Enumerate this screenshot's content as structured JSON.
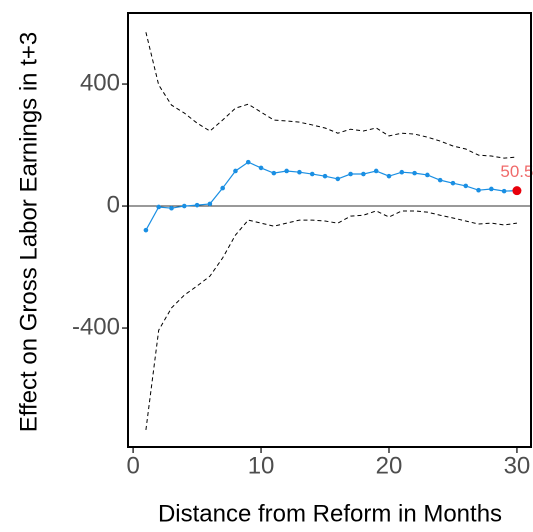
{
  "chart_data": {
    "type": "line",
    "x_label": "Distance from Reform in Months",
    "y_label": "Effect on Gross Labor Earnings in t+3",
    "x": [
      1,
      2,
      3,
      4,
      5,
      6,
      7,
      8,
      9,
      10,
      11,
      12,
      13,
      14,
      15,
      16,
      17,
      18,
      19,
      20,
      21,
      22,
      23,
      24,
      25,
      26,
      27,
      28,
      29,
      30
    ],
    "series": [
      {
        "color": "#1a8fe3",
        "dashed": false,
        "markers": true,
        "values": [
          -79,
          -3,
          -7,
          0,
          3,
          7,
          59,
          115,
          144,
          125,
          108,
          115,
          111,
          105,
          98,
          89,
          105,
          105,
          115,
          98,
          111,
          108,
          102,
          85,
          75,
          66,
          52,
          56,
          49,
          50.5
        ],
        "value_labels": [
          null,
          null,
          null,
          null,
          null,
          null,
          null,
          null,
          null,
          null,
          null,
          null,
          null,
          null,
          null,
          null,
          null,
          null,
          null,
          null,
          null,
          null,
          null,
          null,
          null,
          null,
          null,
          null,
          null,
          "50.5"
        ],
        "highlight_color": "#e8000b",
        "label_color": "#f06a6a"
      },
      {
        "color": "#000000",
        "dashed": true,
        "markers": false,
        "values": [
          570,
          397,
          331,
          305,
          272,
          246,
          282,
          321,
          334,
          308,
          282,
          279,
          275,
          266,
          256,
          239,
          252,
          246,
          256,
          230,
          239,
          236,
          226,
          213,
          197,
          187,
          167,
          164,
          157,
          161
        ]
      },
      {
        "color": "#000000",
        "dashed": true,
        "markers": false,
        "values": [
          -734,
          -407,
          -334,
          -292,
          -262,
          -230,
          -170,
          -95,
          -46,
          -56,
          -66,
          -56,
          -46,
          -46,
          -49,
          -56,
          -33,
          -30,
          -16,
          -36,
          -16,
          -16,
          -20,
          -30,
          -39,
          -49,
          -59,
          -56,
          -62,
          -56
        ]
      }
    ],
    "reference_line": 0,
    "xlim": [
      -0.4,
      31.1
    ],
    "xticks": [
      0,
      10,
      20,
      30
    ],
    "ylim": [
      -790,
      633
    ],
    "yticks": [
      -400,
      0,
      400
    ],
    "grid": false
  }
}
